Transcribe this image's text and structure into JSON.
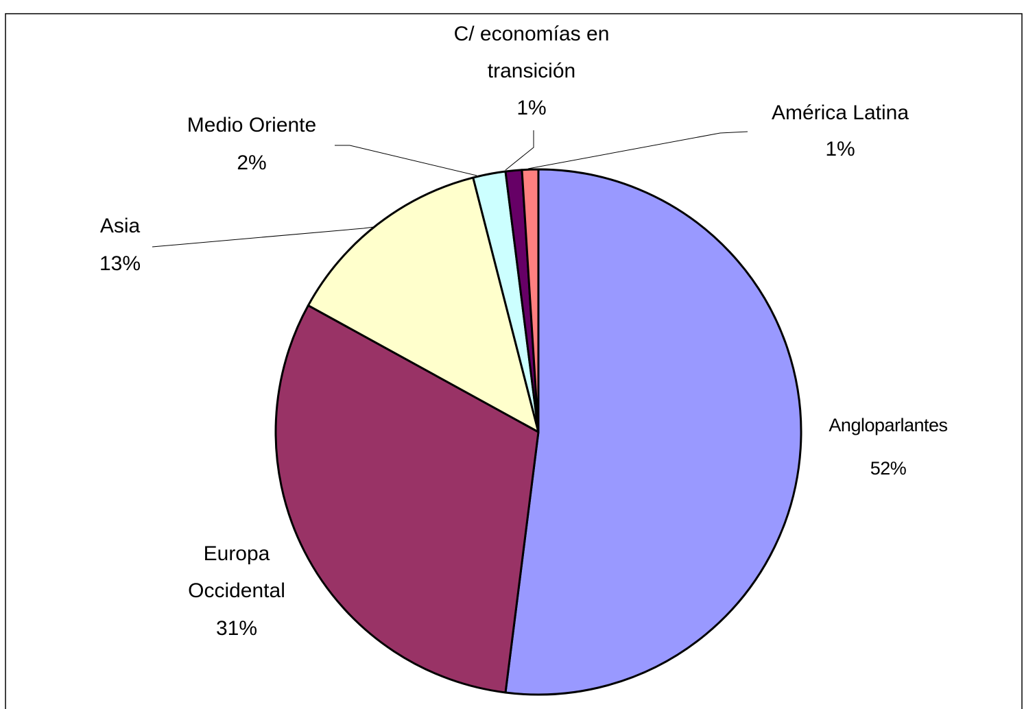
{
  "chart_data": {
    "type": "pie",
    "categories": [
      "Angloparlantes",
      "Europa Occidental",
      "Asia",
      "Medio Oriente",
      "C/ economías en transición",
      "América Latina"
    ],
    "values": [
      52,
      31,
      13,
      2,
      1,
      1
    ],
    "value_labels": [
      "52%",
      "31%",
      "13%",
      "2%",
      "1%",
      "1%"
    ],
    "colors": [
      "#9999ff",
      "#993366",
      "#ffffcc",
      "#ccffff",
      "#660066",
      "#ff8080"
    ]
  }
}
